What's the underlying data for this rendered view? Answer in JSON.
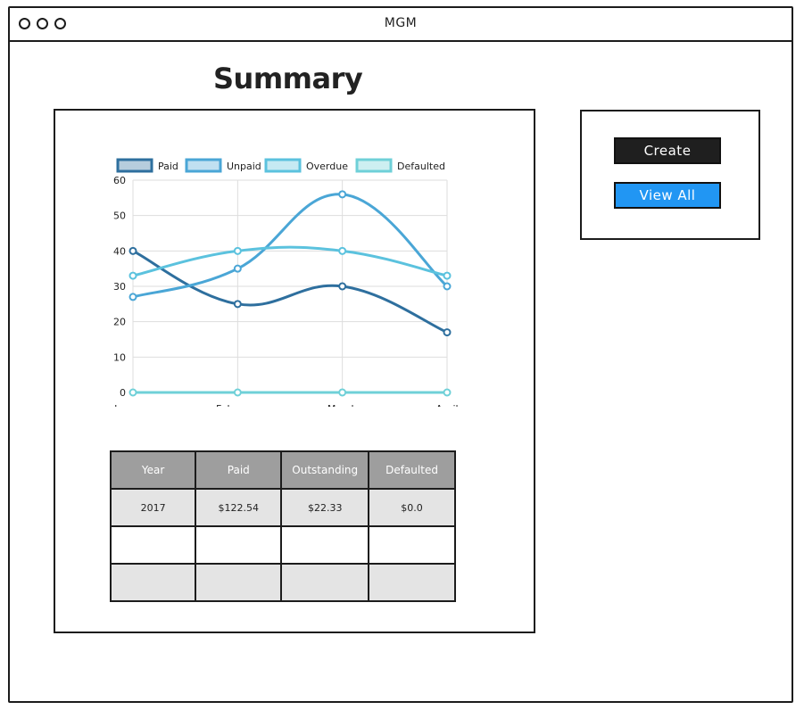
{
  "window": {
    "title": "MGM"
  },
  "page": {
    "title": "Summary"
  },
  "actions": {
    "create_label": "Create",
    "view_all_label": "View All"
  },
  "colors": {
    "paid": "#2e6f9e",
    "unpaid": "#4aa6d6",
    "overdue": "#5bc2de",
    "defaulted": "#6fd0d8",
    "create_bg": "#1f1f1f",
    "view_all_bg": "#2196f3",
    "table_header": "#9e9e9e",
    "table_row": "#e4e4e4"
  },
  "chart_data": {
    "type": "line",
    "categories": [
      "January",
      "February",
      "March",
      "April"
    ],
    "series": [
      {
        "name": "Paid",
        "values": [
          40,
          25,
          30,
          17
        ]
      },
      {
        "name": "Unpaid",
        "values": [
          27,
          35,
          56,
          30
        ]
      },
      {
        "name": "Overdue",
        "values": [
          33,
          40,
          40,
          33
        ]
      },
      {
        "name": "Defaulted",
        "values": [
          0,
          0,
          0,
          0
        ]
      }
    ],
    "ylim": [
      0,
      60
    ],
    "yticks": [
      "0",
      "10",
      "20",
      "30",
      "40",
      "50",
      "60"
    ],
    "grid": true,
    "legend": "top"
  },
  "table": {
    "headers": [
      "Year",
      "Paid",
      "Outstanding",
      "Defaulted"
    ],
    "rows": [
      [
        "2017",
        "$122.54",
        "$22.33",
        "$0.0"
      ],
      [
        "",
        "",
        "",
        ""
      ],
      [
        "",
        "",
        "",
        ""
      ]
    ]
  }
}
